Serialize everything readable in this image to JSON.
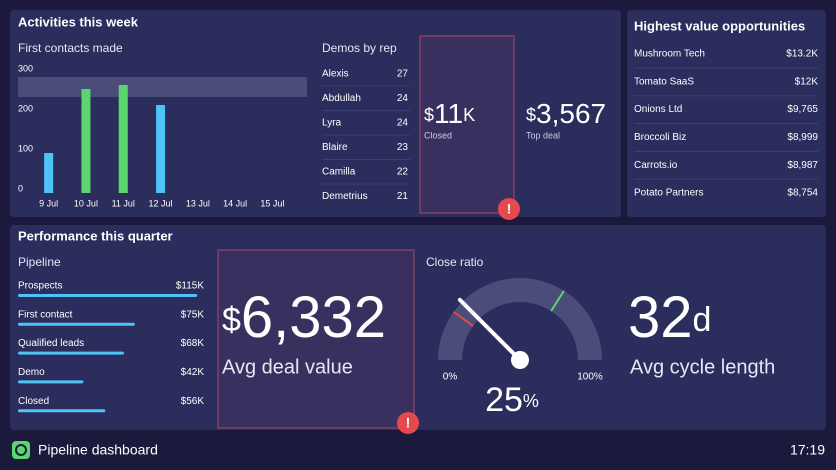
{
  "activities": {
    "title": "Activities this week",
    "demos": {
      "title": "Demos by rep",
      "rows": [
        {
          "name": "Alexis",
          "count": "27"
        },
        {
          "name": "Abdullah",
          "count": "24"
        },
        {
          "name": "Lyra",
          "count": "24"
        },
        {
          "name": "Blaire",
          "count": "23"
        },
        {
          "name": "Camilla",
          "count": "22"
        },
        {
          "name": "Demetrius",
          "count": "21"
        }
      ]
    },
    "closed": {
      "prefix": "$",
      "value": "11",
      "suffix": "K",
      "label": "Closed"
    },
    "top_deal": {
      "prefix": "$",
      "value": "3,567",
      "label": "Top deal"
    }
  },
  "opportunities": {
    "title": "Highest value opportunities",
    "rows": [
      {
        "name": "Mushroom Tech",
        "value": "$13.2K"
      },
      {
        "name": "Tomato SaaS",
        "value": "$12K"
      },
      {
        "name": "Onions Ltd",
        "value": "$9,765"
      },
      {
        "name": "Broccoli Biz",
        "value": "$8,999"
      },
      {
        "name": "Carrots.io",
        "value": "$8,987"
      },
      {
        "name": "Potato Partners",
        "value": "$8,754"
      }
    ]
  },
  "performance": {
    "title": "Performance this quarter",
    "avg_deal": {
      "prefix": "$",
      "value": "6,332",
      "label": "Avg deal value"
    },
    "cycle": {
      "value": "32",
      "suffix": "d",
      "label": "Avg cycle length"
    }
  },
  "footer": {
    "title": "Pipeline dashboard",
    "time": "17:19"
  },
  "chart_data": [
    {
      "type": "bar",
      "title": "First contacts made",
      "categories": [
        "9 Jul",
        "10 Jul",
        "11 Jul",
        "12 Jul",
        "13 Jul",
        "14 Jul",
        "15 Jul"
      ],
      "series": [
        {
          "color": "#4fc3f7",
          "values": [
            100,
            null,
            null,
            220,
            null,
            null,
            null
          ]
        },
        {
          "color": "#5ad66c",
          "values": [
            null,
            260,
            270,
            null,
            null,
            null,
            null
          ]
        }
      ],
      "band": [
        240,
        290
      ],
      "band_color": "#4a4d78",
      "ylim": [
        0,
        300
      ],
      "yticks": [
        0,
        100,
        200,
        300
      ],
      "grid": false
    },
    {
      "type": "hbar",
      "title": "Pipeline",
      "categories": [
        "Prospects",
        "First contact",
        "Qualified leads",
        "Demo",
        "Closed"
      ],
      "values": [
        115000,
        75000,
        68000,
        42000,
        56000
      ],
      "value_labels": [
        "$115K",
        "$75K",
        "$68K",
        "$42K",
        "$56K"
      ],
      "color": "#4fc3f7",
      "xlim": [
        0,
        120000
      ]
    },
    {
      "type": "gauge",
      "title": "Close ratio",
      "value": 25,
      "unit": "%",
      "ylim": [
        0,
        100
      ],
      "yticks": [
        {
          "value": 0,
          "label": "0%"
        },
        {
          "value": 100,
          "label": "100%"
        }
      ],
      "color": "#4a4d7a"
    }
  ]
}
